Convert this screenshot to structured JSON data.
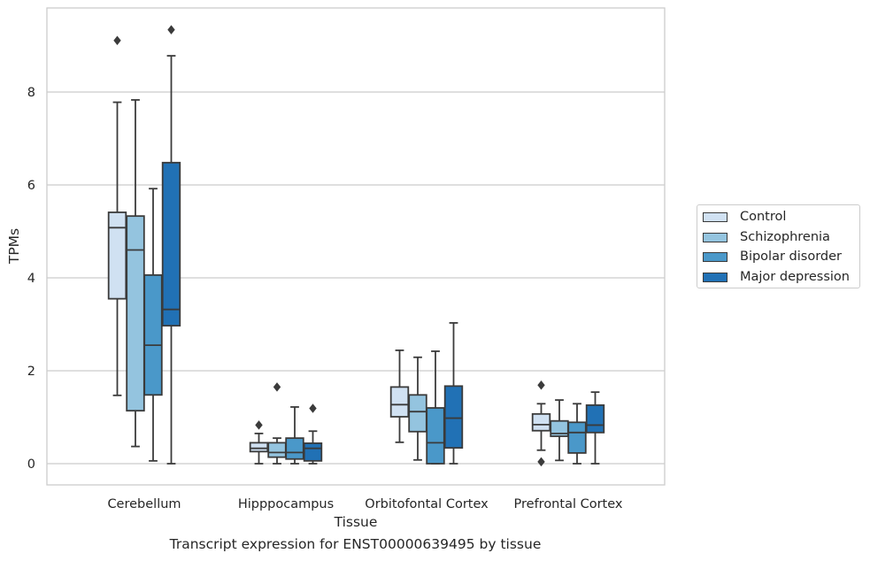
{
  "chart_data": {
    "type": "box",
    "title": "",
    "xlabel": "Tissue",
    "ylabel": "TPMs",
    "ylim": [
      -0.45,
      9.9
    ],
    "yticks": [
      0,
      2,
      4,
      6,
      8
    ],
    "categories": [
      "Cerebellum",
      "Hipppocampus",
      "Orbitofontal Cortex",
      "Prefrontal Cortex"
    ],
    "grid": "horizontal",
    "legend_position": "right",
    "series": [
      {
        "name": "Control",
        "color": "#d0e1f2",
        "boxes": [
          {
            "whislo": 1.47,
            "q1": 3.55,
            "med": 5.08,
            "q3": 5.41,
            "whishi": 7.78,
            "fliers": [
              9.11
            ]
          },
          {
            "whislo": 0.0,
            "q1": 0.26,
            "med": 0.33,
            "q3": 0.45,
            "whishi": 0.65,
            "fliers": [
              0.83
            ]
          },
          {
            "whislo": 0.46,
            "q1": 1.01,
            "med": 1.27,
            "q3": 1.65,
            "whishi": 2.44,
            "fliers": []
          },
          {
            "whislo": 0.29,
            "q1": 0.71,
            "med": 0.84,
            "q3": 1.07,
            "whishi": 1.29,
            "fliers": [
              1.69,
              0.04
            ]
          }
        ]
      },
      {
        "name": "Schizophrenia",
        "color": "#94c4df",
        "boxes": [
          {
            "whislo": 0.37,
            "q1": 1.14,
            "med": 4.6,
            "q3": 5.33,
            "whishi": 7.83,
            "fliers": []
          },
          {
            "whislo": 0.0,
            "q1": 0.14,
            "med": 0.24,
            "q3": 0.45,
            "whishi": 0.55,
            "fliers": [
              1.65
            ]
          },
          {
            "whislo": 0.08,
            "q1": 0.69,
            "med": 1.12,
            "q3": 1.48,
            "whishi": 2.29,
            "fliers": []
          },
          {
            "whislo": 0.07,
            "q1": 0.59,
            "med": 0.65,
            "q3": 0.92,
            "whishi": 1.37,
            "fliers": []
          }
        ]
      },
      {
        "name": "Bipolar disorder",
        "color": "#4a98c9",
        "boxes": [
          {
            "whislo": 0.06,
            "q1": 1.48,
            "med": 2.55,
            "q3": 4.06,
            "whishi": 5.92,
            "fliers": []
          },
          {
            "whislo": 0.0,
            "q1": 0.1,
            "med": 0.24,
            "q3": 0.55,
            "whishi": 1.22,
            "fliers": []
          },
          {
            "whislo": 0.0,
            "q1": 0.0,
            "med": 0.45,
            "q3": 1.2,
            "whishi": 2.42,
            "fliers": []
          },
          {
            "whislo": 0.0,
            "q1": 0.23,
            "med": 0.67,
            "q3": 0.89,
            "whishi": 1.29,
            "fliers": []
          }
        ]
      },
      {
        "name": "Major depression",
        "color": "#2171b5",
        "boxes": [
          {
            "whislo": 0.0,
            "q1": 2.97,
            "med": 3.32,
            "q3": 6.48,
            "whishi": 8.78,
            "fliers": [
              9.34
            ]
          },
          {
            "whislo": 0.0,
            "q1": 0.06,
            "med": 0.33,
            "q3": 0.44,
            "whishi": 0.7,
            "fliers": [
              1.19
            ]
          },
          {
            "whislo": 0.0,
            "q1": 0.34,
            "med": 0.98,
            "q3": 1.67,
            "whishi": 3.03,
            "fliers": []
          },
          {
            "whislo": 0.0,
            "q1": 0.67,
            "med": 0.83,
            "q3": 1.26,
            "whishi": 1.54,
            "fliers": []
          }
        ]
      }
    ]
  },
  "caption": "Transcript expression for ENST00000639495 by tissue"
}
